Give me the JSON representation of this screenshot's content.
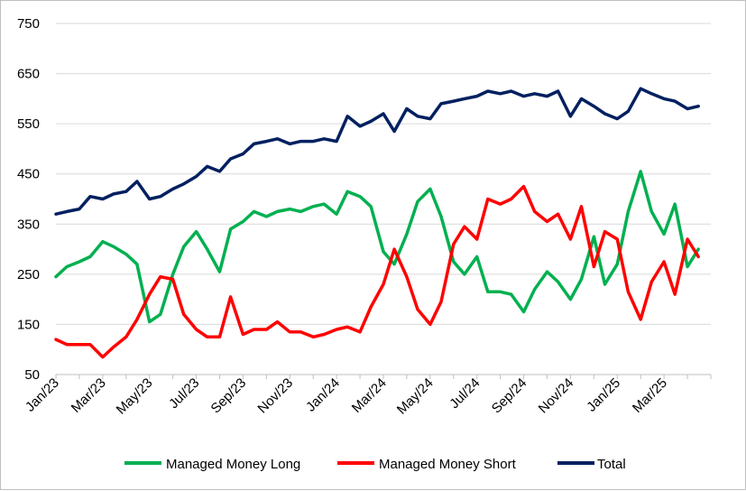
{
  "chart_data": {
    "type": "line",
    "title": "",
    "xlabel": "",
    "ylabel": "",
    "ylim": [
      50,
      750
    ],
    "y_ticks": [
      50,
      150,
      250,
      350,
      450,
      550,
      650,
      750
    ],
    "grid": "horizontal",
    "legend_position": "bottom",
    "x_start": "2023-01",
    "x_end": "2025-05",
    "x_tick_labels": [
      "Jan/23",
      "Mar/23",
      "May/23",
      "Jul/23",
      "Sep/23",
      "Nov/23",
      "Jan/24",
      "Mar/24",
      "May/24",
      "Jul/24",
      "Sep/24",
      "Nov/24",
      "Jan/25",
      "Mar/25"
    ],
    "series": [
      {
        "name": "Managed Money Long",
        "color": "#00b050",
        "points": [
          [
            "2023-01-01",
            245
          ],
          [
            "2023-01-15",
            265
          ],
          [
            "2023-02-01",
            275
          ],
          [
            "2023-02-15",
            285
          ],
          [
            "2023-03-01",
            315
          ],
          [
            "2023-03-15",
            305
          ],
          [
            "2023-04-01",
            290
          ],
          [
            "2023-04-15",
            270
          ],
          [
            "2023-05-01",
            155
          ],
          [
            "2023-05-15",
            170
          ],
          [
            "2023-06-01",
            250
          ],
          [
            "2023-06-15",
            305
          ],
          [
            "2023-07-01",
            335
          ],
          [
            "2023-07-15",
            300
          ],
          [
            "2023-08-01",
            255
          ],
          [
            "2023-08-15",
            340
          ],
          [
            "2023-09-01",
            355
          ],
          [
            "2023-09-15",
            375
          ],
          [
            "2023-10-01",
            365
          ],
          [
            "2023-10-15",
            375
          ],
          [
            "2023-11-01",
            380
          ],
          [
            "2023-11-15",
            375
          ],
          [
            "2023-12-01",
            385
          ],
          [
            "2023-12-15",
            390
          ],
          [
            "2024-01-01",
            370
          ],
          [
            "2024-01-15",
            415
          ],
          [
            "2024-02-01",
            405
          ],
          [
            "2024-02-15",
            385
          ],
          [
            "2024-03-01",
            295
          ],
          [
            "2024-03-15",
            270
          ],
          [
            "2024-04-01",
            330
          ],
          [
            "2024-04-15",
            395
          ],
          [
            "2024-05-01",
            420
          ],
          [
            "2024-05-15",
            365
          ],
          [
            "2024-06-01",
            275
          ],
          [
            "2024-06-15",
            250
          ],
          [
            "2024-07-01",
            285
          ],
          [
            "2024-07-15",
            215
          ],
          [
            "2024-08-01",
            215
          ],
          [
            "2024-08-15",
            210
          ],
          [
            "2024-09-01",
            175
          ],
          [
            "2024-09-15",
            220
          ],
          [
            "2024-10-01",
            255
          ],
          [
            "2024-10-15",
            235
          ],
          [
            "2024-11-01",
            200
          ],
          [
            "2024-11-15",
            240
          ],
          [
            "2024-12-01",
            325
          ],
          [
            "2024-12-15",
            230
          ],
          [
            "2025-01-01",
            270
          ],
          [
            "2025-01-15",
            375
          ],
          [
            "2025-02-01",
            455
          ],
          [
            "2025-02-15",
            375
          ],
          [
            "2025-03-01",
            330
          ],
          [
            "2025-03-15",
            390
          ],
          [
            "2025-04-01",
            265
          ],
          [
            "2025-04-15",
            300
          ]
        ]
      },
      {
        "name": "Managed Money Short",
        "color": "#ff0000",
        "points": [
          [
            "2023-01-01",
            120
          ],
          [
            "2023-01-15",
            110
          ],
          [
            "2023-02-01",
            110
          ],
          [
            "2023-02-15",
            110
          ],
          [
            "2023-03-01",
            85
          ],
          [
            "2023-03-15",
            105
          ],
          [
            "2023-04-01",
            125
          ],
          [
            "2023-04-15",
            160
          ],
          [
            "2023-05-01",
            210
          ],
          [
            "2023-05-15",
            245
          ],
          [
            "2023-06-01",
            240
          ],
          [
            "2023-06-15",
            170
          ],
          [
            "2023-07-01",
            140
          ],
          [
            "2023-07-15",
            125
          ],
          [
            "2023-08-01",
            125
          ],
          [
            "2023-08-15",
            205
          ],
          [
            "2023-09-01",
            130
          ],
          [
            "2023-09-15",
            140
          ],
          [
            "2023-10-01",
            140
          ],
          [
            "2023-10-15",
            155
          ],
          [
            "2023-11-01",
            135
          ],
          [
            "2023-11-15",
            135
          ],
          [
            "2023-12-01",
            125
          ],
          [
            "2023-12-15",
            130
          ],
          [
            "2024-01-01",
            140
          ],
          [
            "2024-01-15",
            145
          ],
          [
            "2024-02-01",
            135
          ],
          [
            "2024-02-15",
            185
          ],
          [
            "2024-03-01",
            230
          ],
          [
            "2024-03-15",
            300
          ],
          [
            "2024-04-01",
            245
          ],
          [
            "2024-04-15",
            180
          ],
          [
            "2024-05-01",
            150
          ],
          [
            "2024-05-15",
            195
          ],
          [
            "2024-06-01",
            310
          ],
          [
            "2024-06-15",
            345
          ],
          [
            "2024-07-01",
            320
          ],
          [
            "2024-07-15",
            400
          ],
          [
            "2024-08-01",
            390
          ],
          [
            "2024-08-15",
            400
          ],
          [
            "2024-09-01",
            425
          ],
          [
            "2024-09-15",
            375
          ],
          [
            "2024-10-01",
            355
          ],
          [
            "2024-10-15",
            370
          ],
          [
            "2024-11-01",
            320
          ],
          [
            "2024-11-15",
            385
          ],
          [
            "2024-12-01",
            265
          ],
          [
            "2024-12-15",
            335
          ],
          [
            "2025-01-01",
            320
          ],
          [
            "2025-01-15",
            215
          ],
          [
            "2025-02-01",
            160
          ],
          [
            "2025-02-15",
            235
          ],
          [
            "2025-03-01",
            275
          ],
          [
            "2025-03-15",
            210
          ],
          [
            "2025-04-01",
            320
          ],
          [
            "2025-04-15",
            285
          ]
        ]
      },
      {
        "name": "Total",
        "color": "#002060",
        "points": [
          [
            "2023-01-01",
            370
          ],
          [
            "2023-01-15",
            375
          ],
          [
            "2023-02-01",
            380
          ],
          [
            "2023-02-15",
            405
          ],
          [
            "2023-03-01",
            400
          ],
          [
            "2023-03-15",
            410
          ],
          [
            "2023-04-01",
            415
          ],
          [
            "2023-04-15",
            435
          ],
          [
            "2023-05-01",
            400
          ],
          [
            "2023-05-15",
            405
          ],
          [
            "2023-06-01",
            420
          ],
          [
            "2023-06-15",
            430
          ],
          [
            "2023-07-01",
            445
          ],
          [
            "2023-07-15",
            465
          ],
          [
            "2023-08-01",
            455
          ],
          [
            "2023-08-15",
            480
          ],
          [
            "2023-09-01",
            490
          ],
          [
            "2023-09-15",
            510
          ],
          [
            "2023-10-01",
            515
          ],
          [
            "2023-10-15",
            520
          ],
          [
            "2023-11-01",
            510
          ],
          [
            "2023-11-15",
            515
          ],
          [
            "2023-12-01",
            515
          ],
          [
            "2023-12-15",
            520
          ],
          [
            "2024-01-01",
            515
          ],
          [
            "2024-01-15",
            565
          ],
          [
            "2024-02-01",
            545
          ],
          [
            "2024-02-15",
            555
          ],
          [
            "2024-03-01",
            570
          ],
          [
            "2024-03-15",
            535
          ],
          [
            "2024-04-01",
            580
          ],
          [
            "2024-04-15",
            565
          ],
          [
            "2024-05-01",
            560
          ],
          [
            "2024-05-15",
            590
          ],
          [
            "2024-06-01",
            595
          ],
          [
            "2024-06-15",
            600
          ],
          [
            "2024-07-01",
            605
          ],
          [
            "2024-07-15",
            615
          ],
          [
            "2024-08-01",
            610
          ],
          [
            "2024-08-15",
            615
          ],
          [
            "2024-09-01",
            605
          ],
          [
            "2024-09-15",
            610
          ],
          [
            "2024-10-01",
            605
          ],
          [
            "2024-10-15",
            615
          ],
          [
            "2024-11-01",
            565
          ],
          [
            "2024-11-15",
            600
          ],
          [
            "2024-12-01",
            585
          ],
          [
            "2024-12-15",
            570
          ],
          [
            "2025-01-01",
            560
          ],
          [
            "2025-01-15",
            575
          ],
          [
            "2025-02-01",
            620
          ],
          [
            "2025-02-15",
            610
          ],
          [
            "2025-03-01",
            600
          ],
          [
            "2025-03-15",
            595
          ],
          [
            "2025-04-01",
            580
          ],
          [
            "2025-04-15",
            585
          ]
        ]
      }
    ]
  },
  "legend": {
    "items": [
      {
        "label": "Managed Money Long",
        "color": "#00b050"
      },
      {
        "label": "Managed Money Short",
        "color": "#ff0000"
      },
      {
        "label": "Total",
        "color": "#002060"
      }
    ]
  }
}
